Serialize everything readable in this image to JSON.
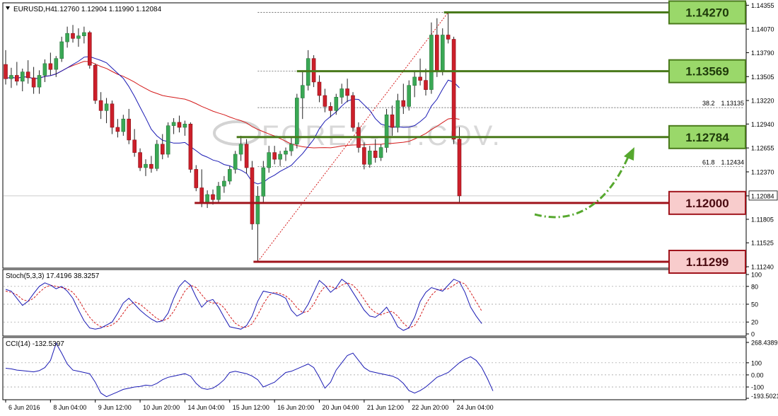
{
  "header": {
    "symbol": "EURUSD,H4",
    "ohlc": "1.12760 1.12904 1.11990 1.12084",
    "dropdown_icon": "triangle-down-icon"
  },
  "watermark": "FOREX-TT.COV.",
  "colors": {
    "background": "#ffffff",
    "border": "#000000",
    "bull_candle": "#3aa855",
    "bear_candle": "#cc1f2a",
    "ma_fast": "#1a1ab4",
    "ma_slow": "#d41a1a",
    "green_level": "#4a7a1c",
    "green_box": "#9ad86a",
    "red_level": "#a0141c",
    "red_box": "#f8cccc",
    "stoch_main": "#1a1ab4",
    "stoch_signal": "#d41a1a",
    "cci": "#1a1ab4",
    "arrow": "#56a82e"
  },
  "chart_data": [
    {
      "type": "candlestick",
      "title": "EURUSD,H4",
      "ylim": [
        1.1124,
        1.1435
      ],
      "price_ticks": [
        "1.14355",
        "1.14070",
        "1.13790",
        "1.13505",
        "1.13220",
        "1.12940",
        "1.12655",
        "1.12370",
        "1.12084",
        "1.11805",
        "1.11525",
        "1.11240"
      ],
      "current_price": "1.12084",
      "x_tick_labels": [
        "6 Jun 2016",
        "8 Jun 04:00",
        "9 Jun 12:00",
        "10 Jun 20:00",
        "14 Jun 04:00",
        "15 Jun 12:00",
        "16 Jun 20:00",
        "20 Jun 04:00",
        "21 Jun 12:00",
        "22 Jun 20:00",
        "24 Jun 04:00"
      ],
      "levels": [
        {
          "label": "1.14270",
          "value": 1.1427,
          "kind": "resistance"
        },
        {
          "label": "1.13569",
          "value": 1.13569,
          "kind": "resistance"
        },
        {
          "label": "1.12784",
          "value": 1.12784,
          "kind": "resistance"
        },
        {
          "label": "1.12000",
          "value": 1.12,
          "kind": "support"
        },
        {
          "label": "1.11299",
          "value": 1.11299,
          "kind": "support"
        }
      ],
      "fibonacci": [
        {
          "label": "38.2",
          "value_label": "1.13135",
          "value": 1.13135
        },
        {
          "label": "61.8",
          "value_label": "1.12434",
          "value": 1.12434
        }
      ],
      "candles": [
        [
          1.1365,
          1.1382,
          1.1341,
          1.1348
        ],
        [
          1.1348,
          1.1361,
          1.1337,
          1.1352
        ],
        [
          1.1352,
          1.1368,
          1.134,
          1.1345
        ],
        [
          1.1345,
          1.136,
          1.1333,
          1.1356
        ],
        [
          1.1356,
          1.137,
          1.1342,
          1.1349
        ],
        [
          1.1349,
          1.1362,
          1.133,
          1.1338
        ],
        [
          1.1338,
          1.1358,
          1.133,
          1.1352
        ],
        [
          1.1352,
          1.1371,
          1.1344,
          1.1366
        ],
        [
          1.1366,
          1.1379,
          1.1352,
          1.1359
        ],
        [
          1.1359,
          1.1375,
          1.135,
          1.1372
        ],
        [
          1.1372,
          1.1398,
          1.1368,
          1.1392
        ],
        [
          1.1392,
          1.141,
          1.1385,
          1.1402
        ],
        [
          1.1402,
          1.1412,
          1.1391,
          1.1396
        ],
        [
          1.1396,
          1.1408,
          1.1386,
          1.1399
        ],
        [
          1.1399,
          1.141,
          1.139,
          1.1403
        ],
        [
          1.1403,
          1.1405,
          1.136,
          1.1364
        ],
        [
          1.1364,
          1.1366,
          1.1318,
          1.1322
        ],
        [
          1.1322,
          1.1332,
          1.13,
          1.131
        ],
        [
          1.131,
          1.1325,
          1.1295,
          1.1318
        ],
        [
          1.1318,
          1.1322,
          1.1282,
          1.129
        ],
        [
          1.129,
          1.13,
          1.1278,
          1.1285
        ],
        [
          1.1285,
          1.1305,
          1.128,
          1.13
        ],
        [
          1.13,
          1.1312,
          1.127,
          1.1275
        ],
        [
          1.1275,
          1.1288,
          1.1255,
          1.126
        ],
        [
          1.126,
          1.1265,
          1.1238,
          1.1242
        ],
        [
          1.1242,
          1.1252,
          1.1232,
          1.1246
        ],
        [
          1.1246,
          1.1256,
          1.1236,
          1.1241
        ],
        [
          1.1241,
          1.1275,
          1.1238,
          1.127
        ],
        [
          1.127,
          1.1282,
          1.1252,
          1.1258
        ],
        [
          1.1258,
          1.1296,
          1.1254,
          1.1292
        ],
        [
          1.1292,
          1.1301,
          1.1282,
          1.1296
        ],
        [
          1.1296,
          1.1304,
          1.1284,
          1.129
        ],
        [
          1.129,
          1.1298,
          1.128,
          1.1294
        ],
        [
          1.1294,
          1.1296,
          1.1236,
          1.124
        ],
        [
          1.124,
          1.1245,
          1.1214,
          1.1218
        ],
        [
          1.1218,
          1.124,
          1.1195,
          1.12
        ],
        [
          1.12,
          1.1215,
          1.1194,
          1.121
        ],
        [
          1.121,
          1.1216,
          1.1198,
          1.1204
        ],
        [
          1.1204,
          1.1225,
          1.12,
          1.122
        ],
        [
          1.122,
          1.1232,
          1.1212,
          1.1226
        ],
        [
          1.1226,
          1.1244,
          1.1222,
          1.124
        ],
        [
          1.124,
          1.1262,
          1.1235,
          1.1258
        ],
        [
          1.1258,
          1.128,
          1.125,
          1.127
        ],
        [
          1.127,
          1.1276,
          1.1235,
          1.1242
        ],
        [
          1.1242,
          1.125,
          1.1168,
          1.1175
        ],
        [
          1.1175,
          1.122,
          1.113,
          1.1208
        ],
        [
          1.1208,
          1.125,
          1.12,
          1.1242
        ],
        [
          1.1242,
          1.1268,
          1.1236,
          1.126
        ],
        [
          1.126,
          1.1268,
          1.1246,
          1.1252
        ],
        [
          1.1252,
          1.1262,
          1.1244,
          1.1258
        ],
        [
          1.1258,
          1.1266,
          1.125,
          1.1262
        ],
        [
          1.1262,
          1.1278,
          1.1256,
          1.127
        ],
        [
          1.127,
          1.133,
          1.1265,
          1.1325
        ],
        [
          1.1325,
          1.1357,
          1.13,
          1.134
        ],
        [
          1.134,
          1.1382,
          1.1334,
          1.1372
        ],
        [
          1.1372,
          1.1376,
          1.1338,
          1.1344
        ],
        [
          1.1344,
          1.1352,
          1.132,
          1.1328
        ],
        [
          1.1328,
          1.1336,
          1.1308,
          1.1315
        ],
        [
          1.1315,
          1.132,
          1.1302,
          1.131
        ],
        [
          1.131,
          1.133,
          1.1305,
          1.1326
        ],
        [
          1.1326,
          1.1342,
          1.1318,
          1.1336
        ],
        [
          1.1336,
          1.1348,
          1.132,
          1.1328
        ],
        [
          1.1328,
          1.1332,
          1.1285,
          1.129
        ],
        [
          1.129,
          1.1296,
          1.126,
          1.1266
        ],
        [
          1.1266,
          1.1272,
          1.124,
          1.1246
        ],
        [
          1.1246,
          1.1268,
          1.1242,
          1.1262
        ],
        [
          1.1262,
          1.1276,
          1.1248,
          1.1254
        ],
        [
          1.1254,
          1.127,
          1.125,
          1.1266
        ],
        [
          1.1266,
          1.1312,
          1.126,
          1.1305
        ],
        [
          1.1305,
          1.1316,
          1.128,
          1.129
        ],
        [
          1.129,
          1.133,
          1.1284,
          1.1322
        ],
        [
          1.1322,
          1.1342,
          1.1306,
          1.1315
        ],
        [
          1.1315,
          1.1346,
          1.131,
          1.134
        ],
        [
          1.134,
          1.1358,
          1.1326,
          1.135
        ],
        [
          1.135,
          1.1372,
          1.134,
          1.1346
        ],
        [
          1.1346,
          1.136,
          1.1328,
          1.1335
        ],
        [
          1.1335,
          1.1415,
          1.133,
          1.14
        ],
        [
          1.14,
          1.142,
          1.135,
          1.1358
        ],
        [
          1.1358,
          1.1408,
          1.1352,
          1.14
        ],
        [
          1.14,
          1.1427,
          1.139,
          1.1395
        ],
        [
          1.1395,
          1.1398,
          1.127,
          1.1276
        ],
        [
          1.1276,
          1.12904,
          1.1199,
          1.12084
        ]
      ],
      "ma_fast_label": "",
      "ma_slow_label": ""
    },
    {
      "type": "line",
      "title": "Stoch(5,3,3) 17.4196 38.3257",
      "ylim": [
        0,
        100
      ],
      "y_ticks": [
        "100",
        "80",
        "50",
        "20",
        "0"
      ],
      "main": [
        75,
        72,
        60,
        48,
        55,
        68,
        80,
        86,
        82,
        76,
        80,
        72,
        60,
        40,
        22,
        10,
        8,
        10,
        15,
        20,
        35,
        52,
        60,
        50,
        40,
        32,
        25,
        20,
        22,
        35,
        60,
        80,
        90,
        82,
        62,
        45,
        55,
        58,
        45,
        28,
        12,
        10,
        8,
        14,
        30,
        55,
        72,
        70,
        68,
        65,
        60,
        40,
        30,
        35,
        50,
        70,
        90,
        82,
        70,
        78,
        92,
        85,
        70,
        55,
        40,
        30,
        28,
        35,
        45,
        30,
        12,
        6,
        10,
        28,
        55,
        70,
        78,
        75,
        72,
        82,
        92,
        88,
        70,
        45,
        30,
        17.42
      ],
      "signal": [
        72,
        70,
        66,
        58,
        55,
        60,
        70,
        78,
        82,
        80,
        78,
        76,
        70,
        58,
        42,
        28,
        18,
        12,
        12,
        15,
        22,
        35,
        48,
        54,
        50,
        42,
        34,
        26,
        22,
        26,
        38,
        55,
        72,
        82,
        78,
        66,
        55,
        52,
        52,
        44,
        30,
        18,
        12,
        11,
        17,
        32,
        50,
        65,
        70,
        68,
        64,
        56,
        44,
        36,
        38,
        50,
        68,
        80,
        80,
        76,
        82,
        86,
        82,
        72,
        58,
        44,
        36,
        32,
        36,
        38,
        30,
        18,
        10,
        14,
        30,
        50,
        65,
        74,
        75,
        76,
        82,
        88,
        84,
        70,
        54,
        38.33
      ]
    },
    {
      "type": "line",
      "title": "CCI(14) -132.5397",
      "ylim": [
        -193.5021,
        268.4389
      ],
      "y_ticks": [
        "268.4389",
        "100",
        "0.00",
        "-100",
        "-193.5021"
      ],
      "values": [
        55,
        50,
        40,
        35,
        30,
        25,
        35,
        60,
        120,
        260,
        180,
        90,
        40,
        30,
        20,
        10,
        -60,
        -150,
        -180,
        -160,
        -140,
        -120,
        -110,
        -100,
        -95,
        -85,
        -90,
        -70,
        -40,
        -20,
        -10,
        0,
        10,
        -10,
        -70,
        -110,
        -120,
        -110,
        -80,
        -40,
        20,
        30,
        20,
        10,
        -10,
        -40,
        -100,
        -80,
        -60,
        -20,
        20,
        30,
        50,
        70,
        90,
        60,
        -20,
        -110,
        -60,
        40,
        100,
        160,
        180,
        120,
        60,
        30,
        20,
        10,
        0,
        -10,
        -30,
        -70,
        -130,
        -150,
        -130,
        -100,
        -60,
        -20,
        0,
        20,
        60,
        100,
        130,
        150,
        120,
        60,
        -30,
        -132.54
      ]
    }
  ]
}
